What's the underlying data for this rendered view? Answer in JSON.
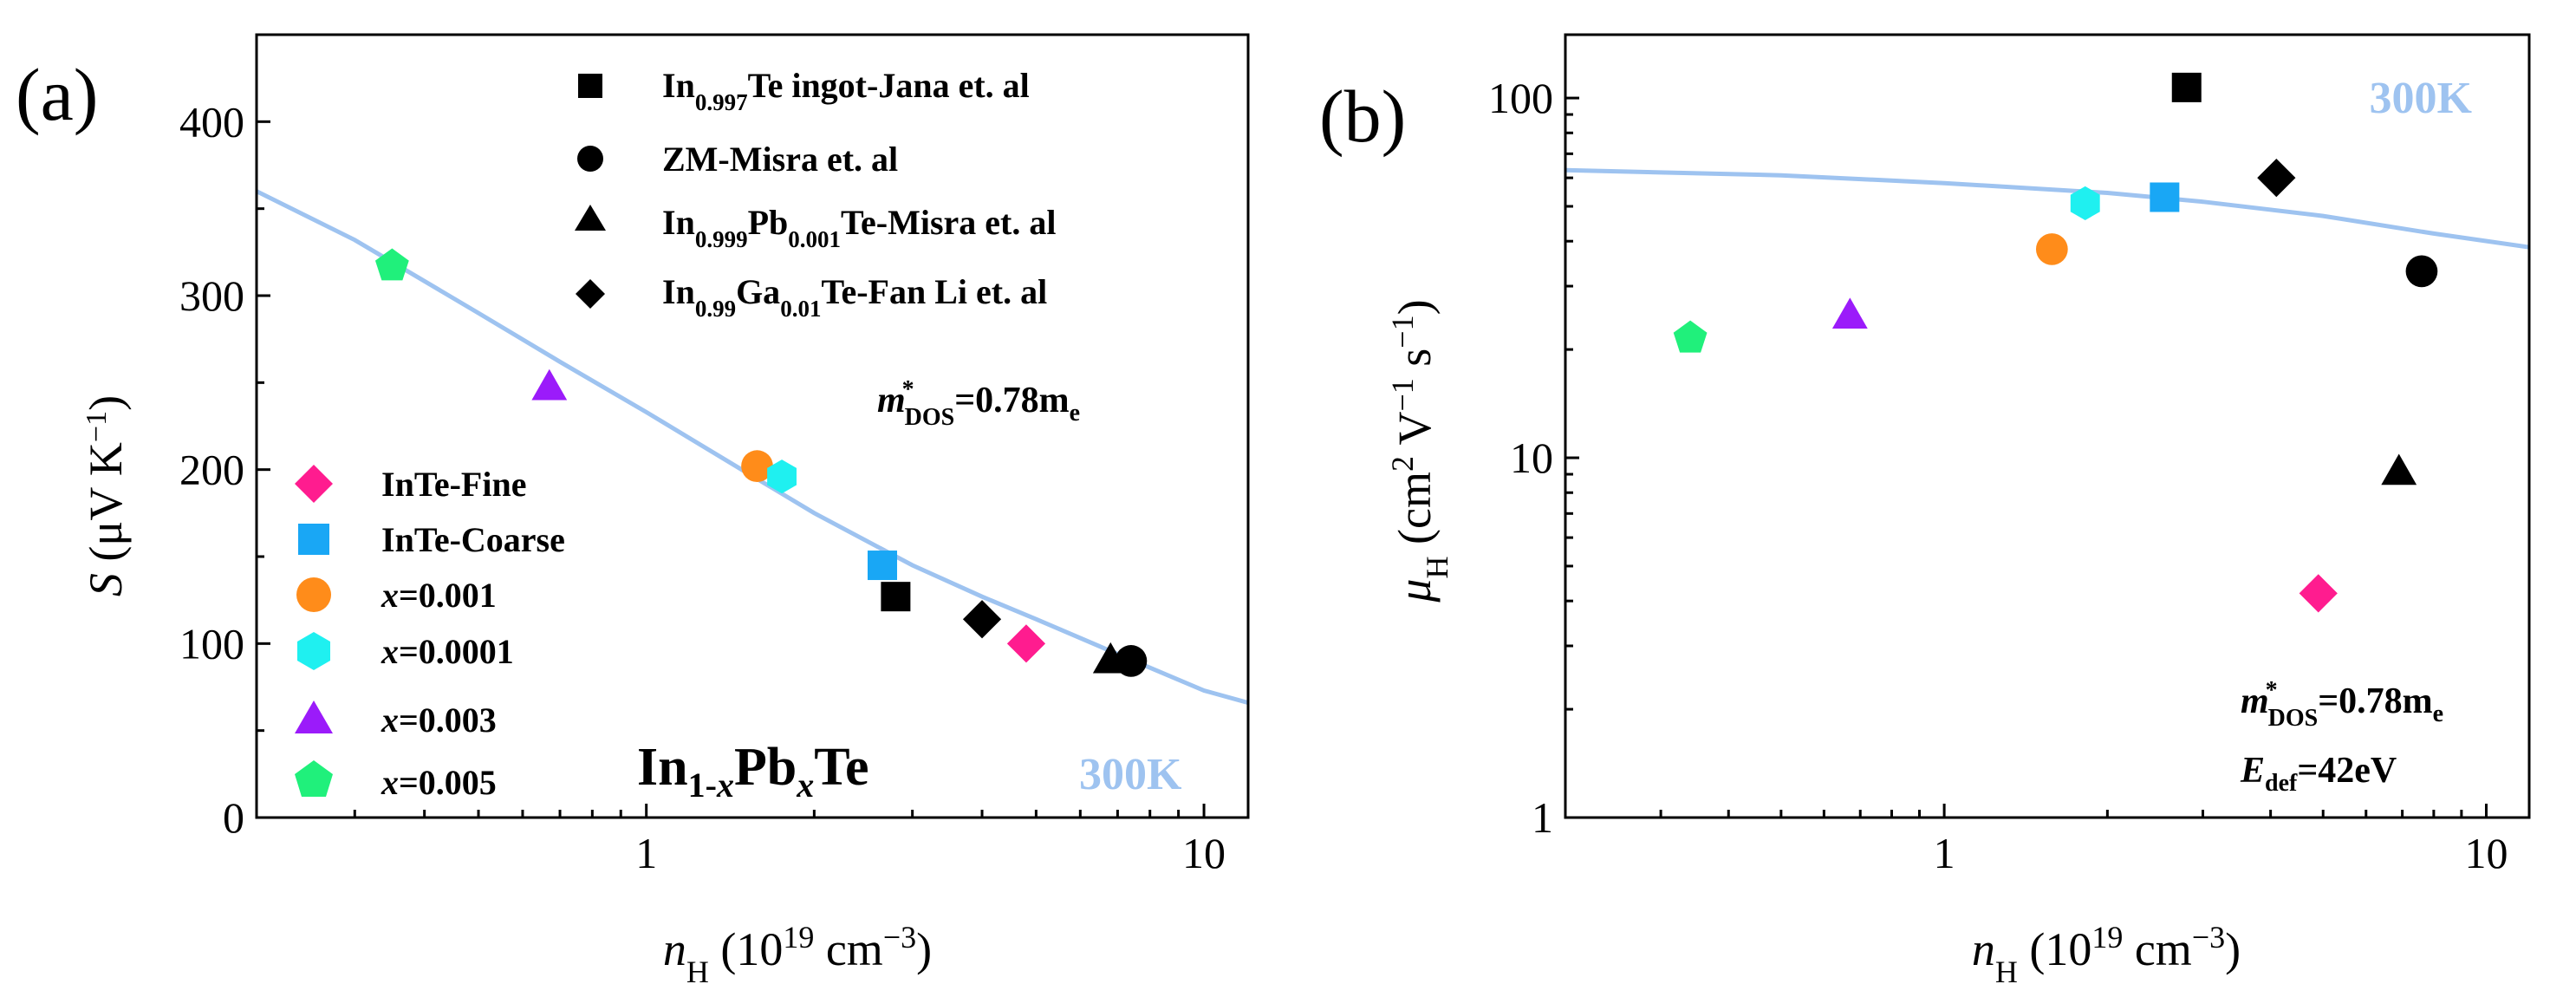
{
  "colors": {
    "fine": "#ff1c8f",
    "coarse": "#19a7f5",
    "x0001": "#ff8c1a",
    "x00001": "#1ff0f0",
    "x0003": "#9b1bfa",
    "x0005": "#20f07b",
    "literature": "#000000",
    "fit": "#9ec3f0",
    "temp": "#9ec3f0"
  },
  "chart_data": [
    {
      "type": "scatter",
      "panel_label": "(a)",
      "xlabel": {
        "main": "n",
        "sub": "H",
        "rest": " (10",
        "sup": "19",
        "rest2": " cm",
        "sup2": "−3",
        "rest3": ")"
      },
      "ylabel": {
        "main": "S",
        "rest": " (μV K",
        "sup": "−1",
        "rest2": ")"
      },
      "x_scale": "log",
      "xlim": [
        0.2,
        12
      ],
      "ylim": [
        0,
        450
      ],
      "x_ticks": [
        {
          "v": 1,
          "label": "1"
        },
        {
          "v": 10,
          "label": "10"
        }
      ],
      "y_ticks": [
        {
          "v": 0,
          "label": "0"
        },
        {
          "v": 100,
          "label": "100"
        },
        {
          "v": 200,
          "label": "200"
        },
        {
          "v": 300,
          "label": "300"
        },
        {
          "v": 400,
          "label": "400"
        }
      ],
      "series": [
        {
          "key": "lit_jana",
          "marker": "square",
          "color": "#000000",
          "points": [
            [
              2.8,
              127
            ]
          ]
        },
        {
          "key": "lit_zm",
          "marker": "circle",
          "color": "#000000",
          "points": [
            [
              7.4,
              90
            ]
          ]
        },
        {
          "key": "lit_pb",
          "marker": "triangle",
          "color": "#000000",
          "points": [
            [
              6.8,
              91
            ]
          ]
        },
        {
          "key": "lit_ga",
          "marker": "diamond",
          "color": "#000000",
          "points": [
            [
              4.0,
              114
            ]
          ]
        },
        {
          "key": "fine",
          "marker": "diamond",
          "color": "#ff1c8f",
          "points": [
            [
              4.8,
              100
            ]
          ]
        },
        {
          "key": "coarse",
          "marker": "square",
          "color": "#19a7f5",
          "points": [
            [
              2.65,
              145
            ]
          ]
        },
        {
          "key": "x0001",
          "marker": "circle",
          "color": "#ff8c1a",
          "points": [
            [
              1.58,
              202
            ]
          ]
        },
        {
          "key": "x00001",
          "marker": "hexagon",
          "color": "#1ff0f0",
          "points": [
            [
              1.75,
              196
            ]
          ]
        },
        {
          "key": "x0003",
          "marker": "triangle",
          "color": "#9b1bfa",
          "points": [
            [
              0.67,
              248
            ]
          ]
        },
        {
          "key": "x0005",
          "marker": "pentagon",
          "color": "#20f07b",
          "points": [
            [
              0.35,
              317
            ]
          ]
        }
      ],
      "fit_curve": {
        "color": "#9ec3f0",
        "points": [
          [
            0.2,
            360
          ],
          [
            0.3,
            332
          ],
          [
            0.5,
            290
          ],
          [
            0.7,
            262
          ],
          [
            1.0,
            233
          ],
          [
            1.5,
            199
          ],
          [
            2.0,
            175
          ],
          [
            3.0,
            145
          ],
          [
            4.0,
            127
          ],
          [
            5.0,
            114
          ],
          [
            7.0,
            94
          ],
          [
            10.0,
            73
          ],
          [
            12.0,
            66
          ]
        ]
      },
      "legend_top": [
        {
          "marker": "square",
          "parts": [
            [
              "In",
              ""
            ],
            [
              "0.997",
              "sub"
            ],
            [
              "Te ingot-Jana et. al",
              ""
            ]
          ]
        },
        {
          "marker": "circle",
          "parts": [
            [
              "ZM-Misra et. al",
              ""
            ]
          ]
        },
        {
          "marker": "triangle",
          "parts": [
            [
              "In",
              ""
            ],
            [
              "0.999",
              "sub"
            ],
            [
              "Pb",
              ""
            ],
            [
              "0.001",
              "sub"
            ],
            [
              "Te-Misra et. al",
              ""
            ]
          ]
        },
        {
          "marker": "diamond",
          "parts": [
            [
              "In",
              ""
            ],
            [
              "0.99",
              "sub"
            ],
            [
              "Ga",
              ""
            ],
            [
              "0.01",
              "sub"
            ],
            [
              "Te-Fan Li et. al",
              ""
            ]
          ]
        }
      ],
      "legend_bottom": [
        {
          "marker": "diamond",
          "color": "#ff1c8f",
          "label": "InTe-Fine"
        },
        {
          "marker": "square",
          "color": "#19a7f5",
          "label": "InTe-Coarse"
        },
        {
          "marker": "circle",
          "color": "#ff8c1a",
          "italic": "x",
          "label": "=0.001"
        },
        {
          "marker": "hexagon",
          "color": "#1ff0f0",
          "italic": "x",
          "label": "=0.0001"
        },
        {
          "marker": "triangle",
          "color": "#9b1bfa",
          "italic": "x",
          "label": "=0.003"
        },
        {
          "marker": "pentagon",
          "color": "#20f07b",
          "italic": "x",
          "label": "=0.005"
        }
      ],
      "annotations": {
        "mass": {
          "m": "m",
          "sup": "*",
          "sub": "DOS",
          "rest": "=0.78m",
          "sub2": "e"
        },
        "composition": {
          "p1": "In",
          "s1": "1-",
          "s1x": "x",
          "p2": "Pb",
          "s2x": "x",
          "p3": "Te"
        },
        "temperature": "300K"
      }
    },
    {
      "type": "scatter",
      "panel_label": "(b)",
      "xlabel": {
        "main": "n",
        "sub": "H",
        "rest": " (10",
        "sup": "19",
        "rest2": " cm",
        "sup2": "−3",
        "rest3": ")"
      },
      "ylabel": {
        "main": "μ",
        "sub": "H",
        "rest": " (cm",
        "sup": "2",
        "rest2": " V",
        "sup2": "−1",
        "rest3": " s",
        "sup3": "−1",
        "rest4": ")"
      },
      "x_scale": "log",
      "y_scale": "log",
      "xlim": [
        0.2,
        12
      ],
      "ylim": [
        1,
        150
      ],
      "x_ticks": [
        {
          "v": 1,
          "label": "1"
        },
        {
          "v": 10,
          "label": "10"
        }
      ],
      "y_ticks": [
        {
          "v": 1,
          "label": "1"
        },
        {
          "v": 10,
          "label": "10"
        },
        {
          "v": 100,
          "label": "100"
        }
      ],
      "series": [
        {
          "key": "lit_jana",
          "marker": "square",
          "color": "#000000",
          "points": [
            [
              2.8,
              107
            ]
          ]
        },
        {
          "key": "lit_zm",
          "marker": "circle",
          "color": "#000000",
          "points": [
            [
              7.6,
              33
            ]
          ]
        },
        {
          "key": "lit_pb",
          "marker": "triangle",
          "color": "#000000",
          "points": [
            [
              6.9,
              9.2
            ]
          ]
        },
        {
          "key": "lit_ga",
          "marker": "diamond",
          "color": "#000000",
          "points": [
            [
              4.1,
              60
            ]
          ]
        },
        {
          "key": "fine",
          "marker": "diamond",
          "color": "#ff1c8f",
          "points": [
            [
              4.9,
              4.2
            ]
          ]
        },
        {
          "key": "coarse",
          "marker": "square",
          "color": "#19a7f5",
          "points": [
            [
              2.55,
              53
            ]
          ]
        },
        {
          "key": "x0001",
          "marker": "circle",
          "color": "#ff8c1a",
          "points": [
            [
              1.58,
              38
            ]
          ]
        },
        {
          "key": "x00001",
          "marker": "hexagon",
          "color": "#1ff0f0",
          "points": [
            [
              1.82,
              51
            ]
          ]
        },
        {
          "key": "x0003",
          "marker": "triangle",
          "color": "#9b1bfa",
          "points": [
            [
              0.67,
              25
            ]
          ]
        },
        {
          "key": "x0005",
          "marker": "pentagon",
          "color": "#20f07b",
          "points": [
            [
              0.34,
              21.5
            ]
          ]
        }
      ],
      "fit_curve": {
        "color": "#9ec3f0",
        "points": [
          [
            0.2,
            63
          ],
          [
            0.5,
            61
          ],
          [
            1.0,
            58
          ],
          [
            2.0,
            54.5
          ],
          [
            3.0,
            51.5
          ],
          [
            5.0,
            47
          ],
          [
            8.0,
            42
          ],
          [
            12.0,
            38.5
          ]
        ]
      },
      "annotations": {
        "mass": {
          "m": "m",
          "sup": "*",
          "sub": "DOS",
          "rest": "=0.78m",
          "sub2": "e"
        },
        "edef": {
          "e": "E",
          "sub": "def",
          "rest": "=42eV"
        },
        "temperature": "300K"
      }
    }
  ]
}
